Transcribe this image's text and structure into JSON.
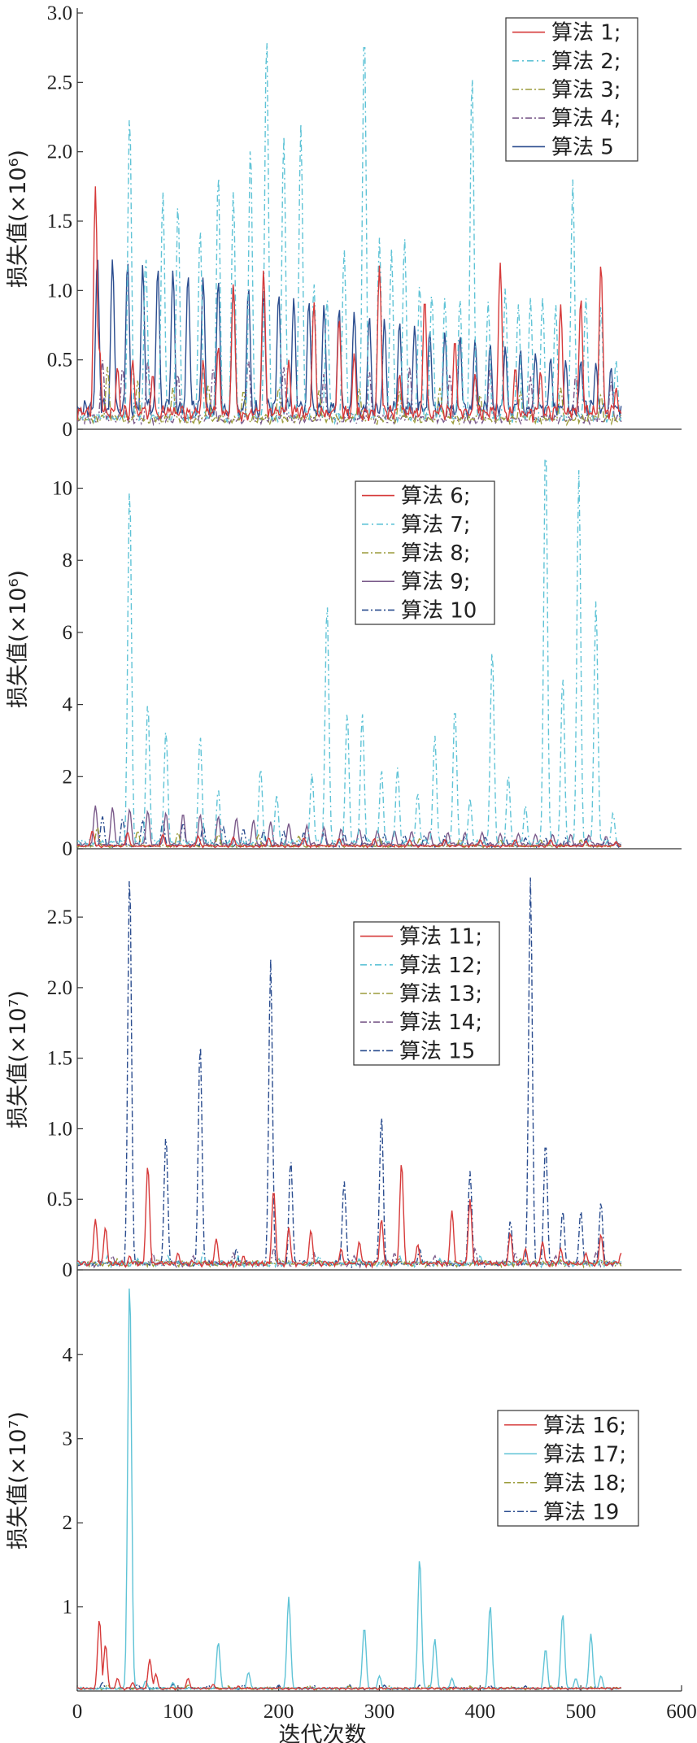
{
  "chart_data": [
    {
      "type": "line",
      "ylabel": "损失值(×10⁶)",
      "xlim": [
        0,
        600
      ],
      "ylim": [
        0,
        3.0
      ],
      "yticks": [
        0,
        0.5,
        1.0,
        1.5,
        2.0,
        2.5,
        3.0
      ],
      "ytick_labels": [
        "0",
        "0.5",
        "1.0",
        "1.5",
        "2.0",
        "2.5",
        "3.0"
      ],
      "legend_position": "top-right",
      "series": [
        {
          "name": "算法 1;",
          "color": "#d63a3a",
          "dash": "solid",
          "base": 0.08,
          "x": [
            18,
            22,
            40,
            55,
            75,
            125,
            140,
            155,
            185,
            210,
            235,
            260,
            275,
            300,
            320,
            345,
            375,
            395,
            420,
            435,
            460,
            480,
            500,
            520,
            535
          ],
          "y": [
            1.75,
            0.6,
            0.45,
            0.5,
            0.4,
            0.5,
            0.6,
            1.05,
            1.15,
            0.5,
            0.92,
            0.8,
            0.55,
            1.18,
            0.4,
            0.95,
            0.65,
            0.4,
            1.2,
            0.45,
            0.42,
            0.9,
            0.95,
            1.2,
            0.3
          ]
        },
        {
          "name": "算法 2;",
          "color": "#5fc3d6",
          "dash": "8,4,2,4",
          "base": 0.06,
          "x": [
            52,
            68,
            85,
            100,
            122,
            140,
            155,
            172,
            188,
            205,
            222,
            235,
            248,
            265,
            285,
            300,
            312,
            325,
            340,
            352,
            365,
            380,
            392,
            408,
            425,
            438,
            450,
            462,
            475,
            492,
            505,
            520,
            535
          ],
          "y": [
            2.28,
            1.25,
            1.72,
            1.63,
            1.45,
            1.85,
            1.72,
            2.05,
            2.85,
            2.12,
            2.2,
            1.05,
            0.95,
            1.3,
            2.9,
            1.38,
            1.3,
            1.38,
            1.05,
            0.98,
            0.95,
            0.95,
            2.58,
            0.92,
            1.02,
            0.9,
            0.95,
            0.95,
            0.9,
            1.8,
            0.95,
            0.9,
            0.5
          ]
        },
        {
          "name": "算法 3;",
          "color": "#9b9c3b",
          "dash": "8,3,2,3",
          "base": 0.05,
          "x": [
            30,
            60,
            95,
            130,
            165,
            200,
            240,
            280,
            320,
            360,
            400,
            440,
            480,
            520
          ],
          "y": [
            0.45,
            0.35,
            0.3,
            0.32,
            0.28,
            0.3,
            0.28,
            0.3,
            0.28,
            0.3,
            0.25,
            0.28,
            0.3,
            0.25
          ]
        },
        {
          "name": "算法 4;",
          "color": "#7a5a8a",
          "dash": "8,3,2,3",
          "base": 0.05,
          "x": [
            25,
            45,
            70,
            100,
            135,
            170,
            205,
            245,
            290,
            330,
            370,
            410,
            450,
            495,
            530
          ],
          "y": [
            0.5,
            0.45,
            0.5,
            0.4,
            0.45,
            0.5,
            0.45,
            0.4,
            0.42,
            0.45,
            0.4,
            0.45,
            0.38,
            0.4,
            0.35
          ]
        },
        {
          "name": "算法 5",
          "color": "#2b4d8f",
          "dash": "solid",
          "base": 0.1,
          "x": [
            20,
            35,
            50,
            65,
            80,
            95,
            110,
            125,
            140,
            155,
            170,
            185,
            200,
            215,
            230,
            245,
            260,
            275,
            290,
            305,
            320,
            335,
            350,
            365,
            380,
            395,
            410,
            425,
            440,
            455,
            470,
            485,
            500,
            515,
            530
          ],
          "y": [
            1.25,
            1.23,
            1.22,
            1.19,
            1.17,
            1.15,
            1.12,
            1.1,
            1.08,
            1.05,
            1.03,
            1.0,
            0.98,
            0.95,
            0.93,
            0.9,
            0.88,
            0.85,
            0.82,
            0.8,
            0.78,
            0.75,
            0.72,
            0.7,
            0.68,
            0.65,
            0.62,
            0.6,
            0.58,
            0.55,
            0.52,
            0.5,
            0.5,
            0.48,
            0.45
          ]
        }
      ]
    },
    {
      "type": "line",
      "ylabel": "损失值(×10⁶)",
      "xlim": [
        0,
        600
      ],
      "ylim": [
        0,
        11.5
      ],
      "yticks": [
        0,
        2,
        4,
        6,
        8,
        10
      ],
      "ytick_labels": [
        "0",
        "2",
        "4",
        "6",
        "8",
        "10"
      ],
      "legend_position": "top-center",
      "series": [
        {
          "name": "算法 6;",
          "color": "#d63a3a",
          "dash": "solid",
          "base": 0.05,
          "x": [
            15,
            50,
            85,
            120,
            155,
            190,
            225,
            260,
            295,
            330,
            365,
            400,
            435,
            470,
            505,
            535
          ],
          "y": [
            0.5,
            0.45,
            0.4,
            0.35,
            0.32,
            0.3,
            0.3,
            0.28,
            0.28,
            0.25,
            0.25,
            0.25,
            0.25,
            0.25,
            0.22,
            0.2
          ]
        },
        {
          "name": "算法 7;",
          "color": "#5fc3d6",
          "dash": "8,4,2,4",
          "base": 0.12,
          "x": [
            52,
            70,
            88,
            122,
            140,
            182,
            198,
            233,
            248,
            268,
            283,
            302,
            318,
            338,
            355,
            375,
            390,
            412,
            428,
            445,
            465,
            482,
            498,
            515,
            532
          ],
          "y": [
            10.1,
            4.05,
            3.3,
            3.15,
            1.65,
            2.25,
            1.5,
            2.1,
            6.85,
            3.8,
            3.75,
            2.2,
            2.25,
            1.55,
            3.15,
            3.95,
            1.4,
            5.55,
            2.05,
            1.2,
            11.4,
            4.8,
            10.5,
            6.9,
            1.0
          ]
        },
        {
          "name": "算法 8;",
          "color": "#9b9c3b",
          "dash": "8,3,2,3",
          "base": 0.05,
          "x": [
            20,
            60,
            100,
            140,
            180,
            220,
            260,
            300,
            340,
            380,
            420,
            460,
            500,
            535
          ],
          "y": [
            0.6,
            0.5,
            0.45,
            0.4,
            0.38,
            0.35,
            0.3,
            0.3,
            0.28,
            0.28,
            0.25,
            0.25,
            0.25,
            0.2
          ]
        },
        {
          "name": "算法 9;",
          "color": "#7a5a8a",
          "dash": "solid",
          "base": 0.08,
          "x": [
            18,
            35,
            52,
            70,
            88,
            105,
            122,
            140,
            158,
            175,
            192,
            210,
            228,
            245,
            262,
            280,
            298,
            315,
            332,
            350,
            368,
            385,
            402,
            420,
            438,
            455,
            472,
            490,
            508,
            525
          ],
          "y": [
            1.2,
            1.15,
            1.1,
            1.05,
            1.0,
            0.98,
            0.95,
            0.9,
            0.85,
            0.8,
            0.75,
            0.7,
            0.65,
            0.6,
            0.55,
            0.55,
            0.5,
            0.5,
            0.48,
            0.48,
            0.45,
            0.45,
            0.45,
            0.42,
            0.42,
            0.4,
            0.4,
            0.4,
            0.38,
            0.35
          ]
        },
        {
          "name": "算法 10",
          "color": "#2b4d8f",
          "dash": "8,3,2,3",
          "base": 0.06,
          "x": [
            25,
            45,
            65,
            85,
            105,
            125,
            145,
            165,
            185,
            205,
            225,
            245,
            265,
            285,
            305,
            325,
            345,
            365,
            385,
            405,
            425,
            445,
            465,
            485,
            505,
            525
          ],
          "y": [
            0.9,
            0.85,
            0.8,
            0.75,
            0.7,
            0.65,
            0.6,
            0.55,
            0.5,
            0.48,
            0.45,
            0.45,
            0.42,
            0.4,
            0.4,
            0.38,
            0.38,
            0.35,
            0.35,
            0.32,
            0.32,
            0.3,
            0.3,
            0.3,
            0.28,
            0.28
          ]
        }
      ]
    },
    {
      "type": "line",
      "ylabel": "损失值(×10⁷)",
      "xlim": [
        0,
        600
      ],
      "ylim": [
        0,
        2.95
      ],
      "yticks": [
        0,
        0.5,
        1.0,
        1.5,
        2.0,
        2.5
      ],
      "ytick_labels": [
        "0",
        "0.5",
        "1.0",
        "1.5",
        "2.0",
        "2.5"
      ],
      "legend_position": "top-center",
      "series": [
        {
          "name": "算法 11;",
          "color": "#d63a3a",
          "dash": "solid",
          "base": 0.03,
          "x": [
            18,
            28,
            52,
            70,
            100,
            138,
            165,
            195,
            210,
            232,
            262,
            280,
            302,
            322,
            338,
            372,
            390,
            430,
            445,
            462,
            480,
            505,
            520,
            540
          ],
          "y": [
            0.36,
            0.3,
            0.1,
            0.74,
            0.12,
            0.22,
            0.1,
            0.57,
            0.3,
            0.28,
            0.15,
            0.2,
            0.36,
            0.76,
            0.18,
            0.42,
            0.5,
            0.26,
            0.15,
            0.2,
            0.15,
            0.12,
            0.25,
            0.12
          ]
        },
        {
          "name": "算法 12;",
          "color": "#5fc3d6",
          "dash": "8,4,2,4",
          "base": 0.03,
          "x": [
            30,
            60,
            90,
            125,
            160,
            200,
            240,
            280,
            320,
            360,
            400,
            440,
            480,
            520
          ],
          "y": [
            0.1,
            0.08,
            0.1,
            0.12,
            0.1,
            0.08,
            0.1,
            0.08,
            0.1,
            0.08,
            0.1,
            0.08,
            0.1,
            0.08
          ]
        },
        {
          "name": "算法 13;",
          "color": "#9b9c3b",
          "dash": "8,3,2,3",
          "base": 0.03,
          "x": [
            40,
            80,
            120,
            160,
            200,
            240,
            280,
            320,
            360,
            400,
            440,
            480,
            520
          ],
          "y": [
            0.08,
            0.08,
            0.07,
            0.07,
            0.08,
            0.07,
            0.07,
            0.08,
            0.07,
            0.07,
            0.08,
            0.07,
            0.07
          ]
        },
        {
          "name": "算法 14;",
          "color": "#7a5a8a",
          "dash": "8,3,2,3",
          "base": 0.03,
          "x": [
            35,
            75,
            115,
            155,
            195,
            235,
            275,
            315,
            355,
            395,
            435,
            475,
            515
          ],
          "y": [
            0.1,
            0.12,
            0.1,
            0.12,
            0.15,
            0.12,
            0.1,
            0.12,
            0.1,
            0.15,
            0.12,
            0.1,
            0.12
          ]
        },
        {
          "name": "算法 15",
          "color": "#2b4d8f",
          "dash": "8,3,2,3",
          "base": 0.03,
          "x": [
            52,
            88,
            122,
            158,
            192,
            212,
            265,
            302,
            340,
            390,
            430,
            450,
            465,
            482,
            500,
            520
          ],
          "y": [
            2.82,
            0.95,
            1.61,
            0.15,
            2.2,
            0.78,
            0.63,
            1.1,
            0.15,
            0.7,
            0.35,
            2.78,
            0.91,
            0.42,
            0.42,
            0.48
          ]
        }
      ]
    },
    {
      "type": "line",
      "ylabel": "损失值(×10⁷)",
      "xlim": [
        0,
        600
      ],
      "ylim": [
        0,
        4.95
      ],
      "yticks": [
        1,
        2,
        3,
        4
      ],
      "ytick_labels": [
        "1",
        "2",
        "3",
        "4"
      ],
      "xticks": [
        0,
        100,
        200,
        300,
        400,
        500,
        600
      ],
      "xtick_labels": [
        "0",
        "100",
        "200",
        "300",
        "400",
        "500",
        "600"
      ],
      "xlabel": "迭代次数",
      "legend_position": "right",
      "series": [
        {
          "name": "算法 16;",
          "color": "#d63a3a",
          "dash": "solid",
          "base": 0.02,
          "x": [
            22,
            28,
            40,
            55,
            72,
            78,
            110,
            135,
            160
          ],
          "y": [
            0.85,
            0.55,
            0.15,
            0.1,
            0.38,
            0.2,
            0.15,
            0.08,
            0.06
          ]
        },
        {
          "name": "算法 17;",
          "color": "#5fc3d6",
          "dash": "solid",
          "base": 0.02,
          "x": [
            52,
            68,
            95,
            140,
            170,
            210,
            285,
            300,
            340,
            355,
            372,
            410,
            465,
            482,
            495,
            510,
            520
          ],
          "y": [
            4.9,
            0.12,
            0.1,
            0.58,
            0.22,
            1.12,
            0.76,
            0.18,
            1.58,
            0.62,
            0.15,
            1.02,
            0.5,
            0.92,
            0.15,
            0.68,
            0.18
          ]
        },
        {
          "name": "算法 18;",
          "color": "#9b9c3b",
          "dash": "8,3,2,3",
          "base": 0.02,
          "x": [
            30,
            70,
            110,
            150,
            190,
            230,
            270,
            310,
            350,
            390,
            430,
            470,
            510
          ],
          "y": [
            0.08,
            0.06,
            0.07,
            0.06,
            0.06,
            0.07,
            0.06,
            0.06,
            0.07,
            0.06,
            0.06,
            0.06,
            0.05
          ]
        },
        {
          "name": "算法 19",
          "color": "#2b4d8f",
          "dash": "8,3,2,3",
          "base": 0.02,
          "x": [
            25,
            60,
            95,
            130,
            165,
            200,
            235,
            270,
            305,
            340,
            375,
            410,
            445,
            480,
            515
          ],
          "y": [
            0.1,
            0.08,
            0.08,
            0.07,
            0.08,
            0.07,
            0.07,
            0.08,
            0.07,
            0.07,
            0.06,
            0.07,
            0.06,
            0.06,
            0.06
          ]
        }
      ]
    }
  ]
}
